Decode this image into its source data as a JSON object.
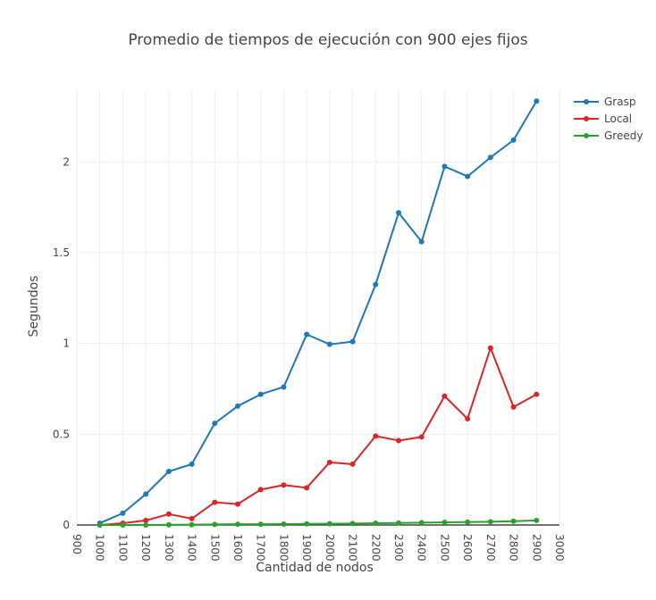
{
  "chart_data": {
    "type": "line",
    "title": "Promedio de tiempos de ejecución con 900 ejes fijos",
    "xlabel": "Cantidad de nodos",
    "ylabel": "Segundos",
    "xlim": [
      900,
      3000
    ],
    "ylim": [
      0,
      2.4
    ],
    "x_ticks": [
      "900",
      "1000",
      "1100",
      "1200",
      "1300",
      "1400",
      "1500",
      "1600",
      "1700",
      "1800",
      "1900",
      "2000",
      "2100",
      "2200",
      "2300",
      "2400",
      "2500",
      "2600",
      "2700",
      "2800",
      "2900",
      "3000"
    ],
    "y_ticks": [
      "0",
      "0.5",
      "1",
      "1.5",
      "2"
    ],
    "grid": true,
    "legend_position": "top-right",
    "x": [
      1000,
      1100,
      1200,
      1300,
      1400,
      1500,
      1600,
      1700,
      1800,
      1900,
      2000,
      2100,
      2200,
      2300,
      2400,
      2500,
      2600,
      2700,
      2800,
      2900
    ],
    "series": [
      {
        "name": "Grasp",
        "color": "#1f77b4",
        "values": [
          0.01,
          0.065,
          0.17,
          0.295,
          0.335,
          0.56,
          0.655,
          0.72,
          0.76,
          1.05,
          0.995,
          1.01,
          1.325,
          1.72,
          1.56,
          1.975,
          1.92,
          2.025,
          2.12,
          2.335
        ]
      },
      {
        "name": "Local",
        "color": "#d62728",
        "values": [
          0.0,
          0.01,
          0.025,
          0.06,
          0.035,
          0.125,
          0.115,
          0.195,
          0.22,
          0.205,
          0.345,
          0.335,
          0.49,
          0.465,
          0.485,
          0.71,
          0.585,
          0.975,
          0.65,
          0.72
        ]
      },
      {
        "name": "Greedy",
        "color": "#2ca02c",
        "values": [
          0.0,
          0.0,
          0.0,
          0.001,
          0.002,
          0.003,
          0.004,
          0.004,
          0.005,
          0.006,
          0.007,
          0.008,
          0.01,
          0.011,
          0.013,
          0.015,
          0.016,
          0.018,
          0.021,
          0.025
        ]
      }
    ]
  }
}
